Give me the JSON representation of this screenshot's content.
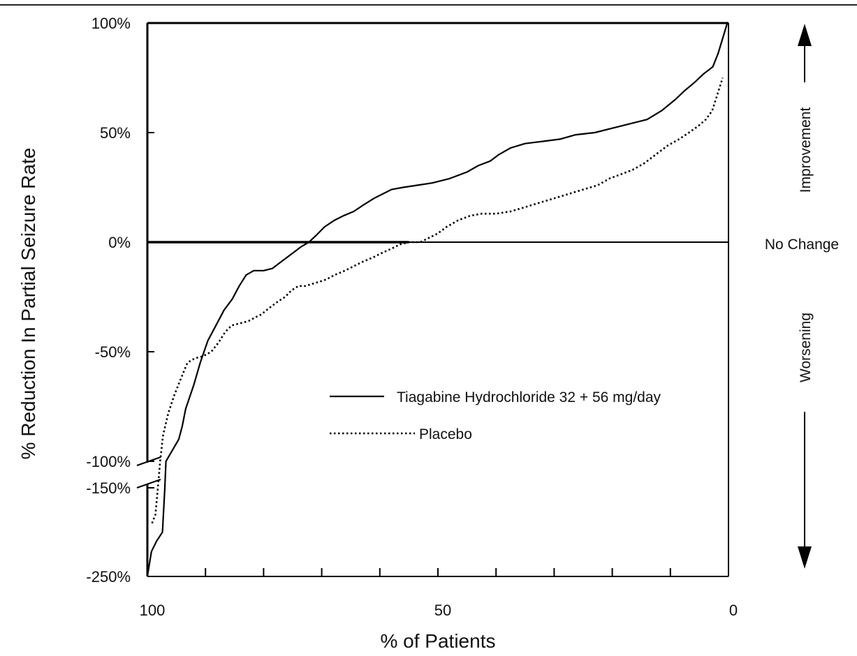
{
  "chart_data": {
    "type": "line",
    "title": "",
    "xlabel": "% of Patients",
    "ylabel": "% Reduction In Partial Seizure Rate",
    "xlim": [
      100,
      0
    ],
    "x_ticks": [
      "100",
      "50",
      "0"
    ],
    "y_ticks": [
      "100%",
      "50%",
      "0%",
      "-50%",
      "-100%",
      "-150%",
      "-250%"
    ],
    "y_axis_break": [
      -100,
      -150
    ],
    "ylim": [
      -250,
      100
    ],
    "grid": false,
    "legend_position": "center-right",
    "side_labels": {
      "improvement": "Improvement",
      "no_change": "No Change",
      "worsening": "Worsening"
    },
    "series": [
      {
        "name": "Tiagabine Hydrochloride 32 + 56 mg/day",
        "style": "solid",
        "color": "#000000",
        "points": [
          [
            100,
            -250
          ],
          [
            99.3,
            -222
          ],
          [
            98.4,
            -210
          ],
          [
            97.4,
            -200
          ],
          [
            97,
            -150
          ],
          [
            96.8,
            -100
          ],
          [
            94.6,
            -90
          ],
          [
            94,
            -84
          ],
          [
            93.4,
            -76
          ],
          [
            92,
            -65
          ],
          [
            90.9,
            -55
          ],
          [
            89.6,
            -45
          ],
          [
            88.2,
            -38
          ],
          [
            86.8,
            -31
          ],
          [
            85.4,
            -26
          ],
          [
            84.2,
            -20
          ],
          [
            83.0,
            -15
          ],
          [
            81.7,
            -13
          ],
          [
            80,
            -13
          ],
          [
            78.5,
            -12
          ],
          [
            76.5,
            -8
          ],
          [
            75,
            -5
          ],
          [
            73.5,
            -2
          ],
          [
            72.2,
            0
          ],
          [
            71,
            3
          ],
          [
            69.5,
            7
          ],
          [
            67.8,
            10
          ],
          [
            66.3,
            12
          ],
          [
            64.5,
            14
          ],
          [
            62.8,
            17
          ],
          [
            61,
            20
          ],
          [
            59.5,
            22
          ],
          [
            58,
            24
          ],
          [
            56,
            25
          ],
          [
            53.5,
            26
          ],
          [
            51,
            27
          ],
          [
            48,
            29
          ],
          [
            45,
            32
          ],
          [
            43,
            35
          ],
          [
            41,
            37
          ],
          [
            39.5,
            40
          ],
          [
            37.5,
            43
          ],
          [
            35,
            45
          ],
          [
            32,
            46
          ],
          [
            29,
            47
          ],
          [
            26.3,
            49
          ],
          [
            23,
            50
          ],
          [
            20,
            52
          ],
          [
            17,
            54
          ],
          [
            14,
            56
          ],
          [
            11.5,
            60
          ],
          [
            9.2,
            65
          ],
          [
            7.6,
            69
          ],
          [
            5.8,
            73
          ],
          [
            4.2,
            77
          ],
          [
            2.7,
            80
          ],
          [
            1.8,
            86
          ],
          [
            1.0,
            93
          ],
          [
            0.2,
            100
          ]
        ]
      },
      {
        "name": "Placebo",
        "style": "dotted",
        "color": "#000000",
        "points": [
          [
            99.2,
            -190
          ],
          [
            98.6,
            -180
          ],
          [
            98.2,
            -150
          ],
          [
            97.8,
            -100
          ],
          [
            97.3,
            -88
          ],
          [
            96.4,
            -78
          ],
          [
            95.4,
            -70
          ],
          [
            94.2,
            -62
          ],
          [
            93.1,
            -55
          ],
          [
            91.8,
            -53
          ],
          [
            90.4,
            -52
          ],
          [
            89,
            -50
          ],
          [
            87.8,
            -46
          ],
          [
            86.6,
            -41
          ],
          [
            85.5,
            -38
          ],
          [
            84,
            -37
          ],
          [
            82.6,
            -36
          ],
          [
            81.2,
            -34
          ],
          [
            80.4,
            -33
          ],
          [
            79,
            -30
          ],
          [
            77.5,
            -27
          ],
          [
            76.3,
            -25
          ],
          [
            75.2,
            -22
          ],
          [
            74,
            -20
          ],
          [
            72.8,
            -20
          ],
          [
            71.6,
            -19
          ],
          [
            70.3,
            -18
          ],
          [
            69.2,
            -17
          ],
          [
            67.8,
            -15
          ],
          [
            66,
            -13
          ],
          [
            64.5,
            -11
          ],
          [
            63,
            -9
          ],
          [
            61.2,
            -7
          ],
          [
            59.7,
            -5
          ],
          [
            58,
            -3
          ],
          [
            56.5,
            -1
          ],
          [
            55,
            0
          ],
          [
            53,
            0
          ],
          [
            51.5,
            2
          ],
          [
            50,
            4
          ],
          [
            48.5,
            7
          ],
          [
            46.5,
            10
          ],
          [
            44.5,
            12
          ],
          [
            42.5,
            13
          ],
          [
            40,
            13
          ],
          [
            37.5,
            14
          ],
          [
            35,
            16
          ],
          [
            32.5,
            18
          ],
          [
            30,
            20
          ],
          [
            27.5,
            22
          ],
          [
            25,
            24
          ],
          [
            22.5,
            26
          ],
          [
            20.5,
            29
          ],
          [
            18.5,
            31
          ],
          [
            16.5,
            33
          ],
          [
            14.5,
            36
          ],
          [
            12.5,
            40
          ],
          [
            10.5,
            44
          ],
          [
            8.5,
            47
          ],
          [
            6.8,
            50
          ],
          [
            5.2,
            53
          ],
          [
            3.9,
            56
          ],
          [
            2.8,
            60
          ],
          [
            2.2,
            65
          ],
          [
            1.6,
            70
          ],
          [
            1.0,
            75
          ]
        ]
      }
    ]
  }
}
